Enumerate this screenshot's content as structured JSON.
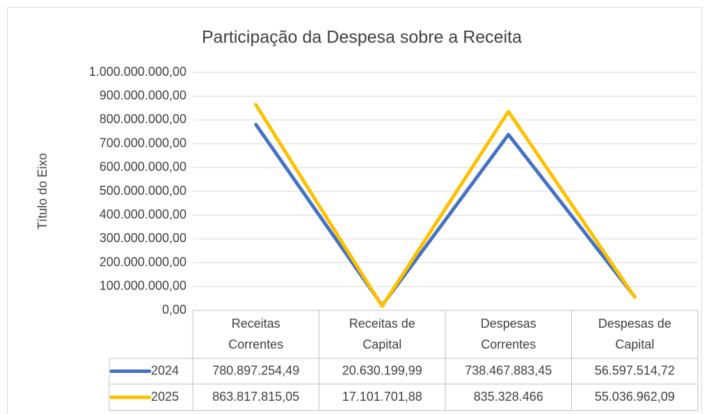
{
  "chart_data": {
    "type": "line",
    "title": "Participação da Despesa sobre a Receita",
    "y_label": "Título do Eixo",
    "categories": [
      "Receitas Correntes",
      "Receitas de Capital",
      "Despesas Correntes",
      "Despesas de Capital"
    ],
    "series": [
      {
        "name": "2024",
        "color": "#4472c4",
        "values": [
          780897254.49,
          20630199.99,
          738467883.45,
          56597514.72
        ],
        "value_labels": [
          "780.897.254,49",
          "20.630.199,99",
          "738.467.883,45",
          "56.597.514,72"
        ]
      },
      {
        "name": "2025",
        "color": "#ffc000",
        "values": [
          863817815.05,
          17101701.88,
          835328466,
          55036962.09
        ],
        "value_labels": [
          "863.817.815,05",
          "17.101.701,88",
          "835.328.466",
          "55.036.962,09"
        ]
      }
    ],
    "ylim": [
      0,
      1000000000
    ],
    "yticks": [
      {
        "value": 0,
        "label": "0,00"
      },
      {
        "value": 100000000,
        "label": "100.000.000,00"
      },
      {
        "value": 200000000,
        "label": "200.000.000,00"
      },
      {
        "value": 300000000,
        "label": "300.000.000,00"
      },
      {
        "value": 400000000,
        "label": "400.000.000,00"
      },
      {
        "value": 500000000,
        "label": "500.000.000,00"
      },
      {
        "value": 600000000,
        "label": "600.000.000,00"
      },
      {
        "value": 700000000,
        "label": "700.000.000,00"
      },
      {
        "value": 800000000,
        "label": "800.000.000,00"
      },
      {
        "value": 900000000,
        "label": "900.000.000,00"
      },
      {
        "value": 1000000000,
        "label": "1.000.000.000,00"
      }
    ],
    "grid": true,
    "data_table": true
  }
}
